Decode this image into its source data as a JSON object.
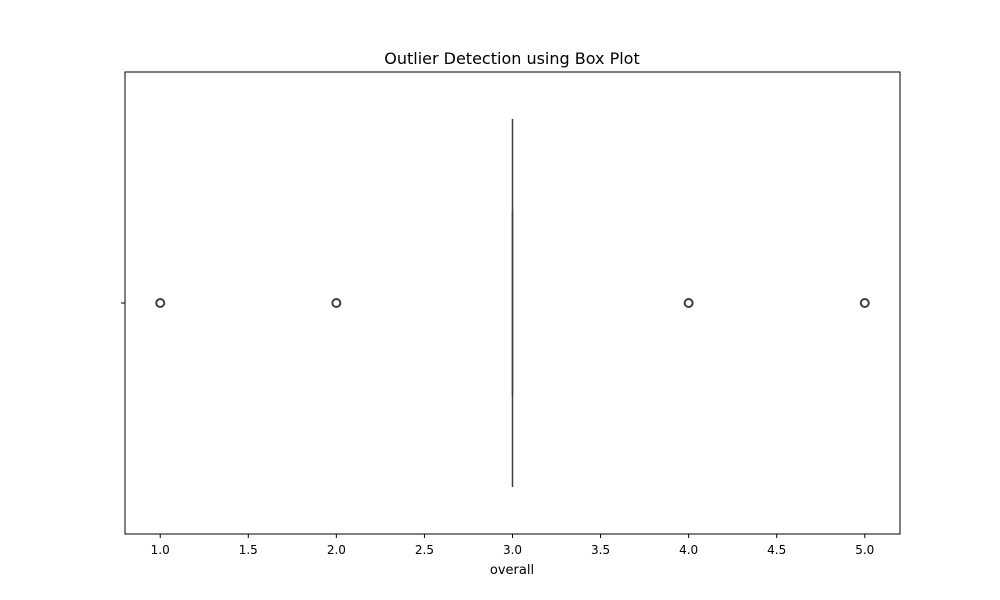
{
  "chart_data": {
    "type": "box",
    "title": "Outlier Detection using Box Plot",
    "xlabel": "overall",
    "ylabel": "",
    "xlim": [
      0.8,
      5.2
    ],
    "xticks": [
      1.0,
      1.5,
      2.0,
      2.5,
      3.0,
      3.5,
      4.0,
      4.5,
      5.0
    ],
    "xtick_labels": [
      "1.0",
      "1.5",
      "2.0",
      "2.5",
      "3.0",
      "3.5",
      "4.0",
      "4.5",
      "5.0"
    ],
    "orientation": "horizontal",
    "grid": false,
    "series": [
      {
        "name": "overall",
        "min": 3.0,
        "q1": 3.0,
        "median": 3.0,
        "q3": 3.0,
        "max": 3.0,
        "outliers": [
          1.0,
          2.0,
          4.0,
          5.0
        ]
      }
    ],
    "colors": {
      "box_line": "#3f3f3f",
      "outlier_edge": "#3f3f3f",
      "axes": "#000000"
    }
  }
}
